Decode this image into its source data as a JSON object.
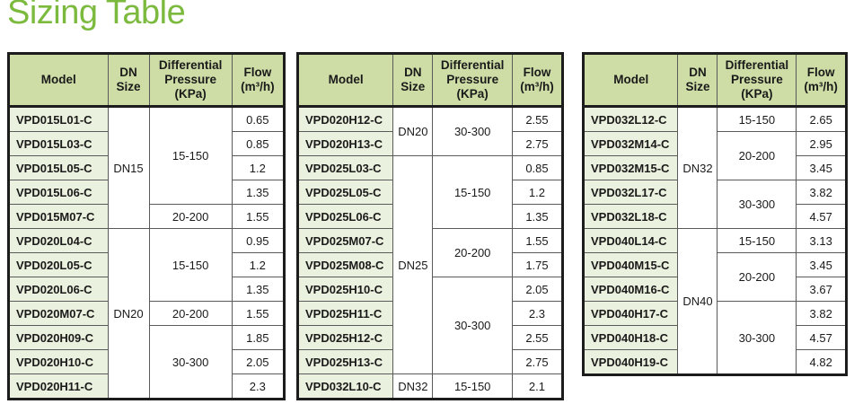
{
  "title": "Sizing Table",
  "colors": {
    "title_green": "#7cba3e",
    "header_background": "#cedda6",
    "model_cell_background": "#eaf1de",
    "outer_border": "#1c1c1c",
    "inner_border": "#5a5a5a",
    "text": "#1a1a1a"
  },
  "columns": [
    "Model",
    "DN Size",
    "Differential Pressure (KPa)",
    "Flow (m³/h)"
  ],
  "tables": [
    {
      "rows": [
        {
          "model": "VPD015L01-C",
          "dn": {
            "text": "DN15",
            "rowspan": 5
          },
          "dp": {
            "text": "15-150",
            "rowspan": 4
          },
          "flow": "0.65"
        },
        {
          "model": "VPD015L03-C",
          "flow": "0.85"
        },
        {
          "model": "VPD015L05-C",
          "flow": "1.2"
        },
        {
          "model": "VPD015L06-C",
          "flow": "1.35"
        },
        {
          "model": "VPD015M07-C",
          "dp": {
            "text": "20-200",
            "rowspan": 1
          },
          "flow": "1.55"
        },
        {
          "model": "VPD020L04-C",
          "dn": {
            "text": "DN20",
            "rowspan": 7
          },
          "dp": {
            "text": "15-150",
            "rowspan": 3
          },
          "flow": "0.95"
        },
        {
          "model": "VPD020L05-C",
          "flow": "1.2"
        },
        {
          "model": "VPD020L06-C",
          "flow": "1.35"
        },
        {
          "model": "VPD020M07-C",
          "dp": {
            "text": "20-200",
            "rowspan": 1
          },
          "flow": "1.55"
        },
        {
          "model": "VPD020H09-C",
          "dp": {
            "text": "30-300",
            "rowspan": 3
          },
          "flow": "1.85"
        },
        {
          "model": "VPD020H10-C",
          "flow": "2.05"
        },
        {
          "model": "VPD020H11-C",
          "flow": "2.3"
        }
      ]
    },
    {
      "rows": [
        {
          "model": "VPD020H12-C",
          "dn": {
            "text": "DN20",
            "rowspan": 2
          },
          "dp": {
            "text": "30-300",
            "rowspan": 2
          },
          "flow": "2.55"
        },
        {
          "model": "VPD020H13-C",
          "flow": "2.75"
        },
        {
          "model": "VPD025L03-C",
          "dn": {
            "text": "DN25",
            "rowspan": 9
          },
          "dp": {
            "text": "15-150",
            "rowspan": 3
          },
          "flow": "0.85"
        },
        {
          "model": "VPD025L05-C",
          "flow": "1.2"
        },
        {
          "model": "VPD025L06-C",
          "flow": "1.35"
        },
        {
          "model": "VPD025M07-C",
          "dp": {
            "text": "20-200",
            "rowspan": 2
          },
          "flow": "1.55"
        },
        {
          "model": "VPD025M08-C",
          "flow": "1.75"
        },
        {
          "model": "VPD025H10-C",
          "dp": {
            "text": "30-300",
            "rowspan": 4
          },
          "flow": "2.05"
        },
        {
          "model": "VPD025H11-C",
          "flow": "2.3"
        },
        {
          "model": "VPD025H12-C",
          "flow": "2.55"
        },
        {
          "model": "VPD025H13-C",
          "flow": "2.75"
        },
        {
          "model": "VPD032L10-C",
          "dn": {
            "text": "DN32",
            "rowspan": 1
          },
          "dp": {
            "text": "15-150",
            "rowspan": 1
          },
          "flow": "2.1"
        }
      ]
    },
    {
      "rows": [
        {
          "model": "VPD032L12-C",
          "dn": {
            "text": "DN32",
            "rowspan": 5
          },
          "dp": {
            "text": "15-150",
            "rowspan": 1
          },
          "flow": "2.65"
        },
        {
          "model": "VPD032M14-C",
          "dp": {
            "text": "20-200",
            "rowspan": 2
          },
          "flow": "2.95"
        },
        {
          "model": "VPD032M15-C",
          "flow": "3.45"
        },
        {
          "model": "VPD032L17-C",
          "dp": {
            "text": "30-300",
            "rowspan": 2
          },
          "flow": "3.82"
        },
        {
          "model": "VPD032L18-C",
          "flow": "4.57"
        },
        {
          "model": "VPD040L14-C",
          "dn": {
            "text": "DN40",
            "rowspan": 6
          },
          "dp": {
            "text": "15-150",
            "rowspan": 1
          },
          "flow": "3.13"
        },
        {
          "model": "VPD040M15-C",
          "dp": {
            "text": "20-200",
            "rowspan": 2
          },
          "flow": "3.45"
        },
        {
          "model": "VPD040M16-C",
          "flow": "3.67"
        },
        {
          "model": "VPD040H17-C",
          "dp": {
            "text": "30-300",
            "rowspan": 3
          },
          "flow": "3.82"
        },
        {
          "model": "VPD040H18-C",
          "flow": "4.57"
        },
        {
          "model": "VPD040H19-C",
          "flow": "4.82"
        }
      ]
    }
  ]
}
